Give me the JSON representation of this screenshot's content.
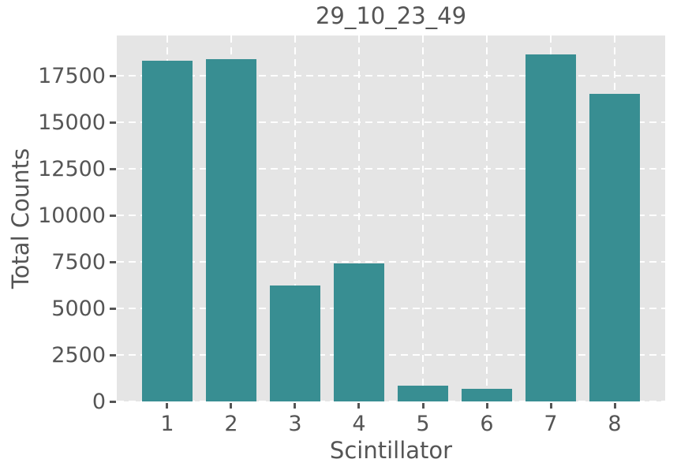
{
  "chart_data": {
    "type": "bar",
    "title": "29_10_23_49",
    "xlabel": "Scintillator",
    "ylabel": "Total Counts",
    "categories": [
      "1",
      "2",
      "3",
      "4",
      "5",
      "6",
      "7",
      "8"
    ],
    "values": [
      18300,
      18400,
      6250,
      7400,
      850,
      680,
      18650,
      16550
    ],
    "yticks": [
      0,
      2500,
      5000,
      7500,
      10000,
      12500,
      15000,
      17500
    ],
    "ylim": [
      0,
      19670
    ],
    "xlim": [
      -0.79,
      7.79
    ],
    "bar_width": 0.8,
    "grid": "white-dashed",
    "legend": false,
    "colors": {
      "bar": "#388E92",
      "plot_bg": "#E5E5E5",
      "grid": "#FFFFFF",
      "text": "#555555",
      "figure_bg": "#FFFFFF"
    }
  }
}
